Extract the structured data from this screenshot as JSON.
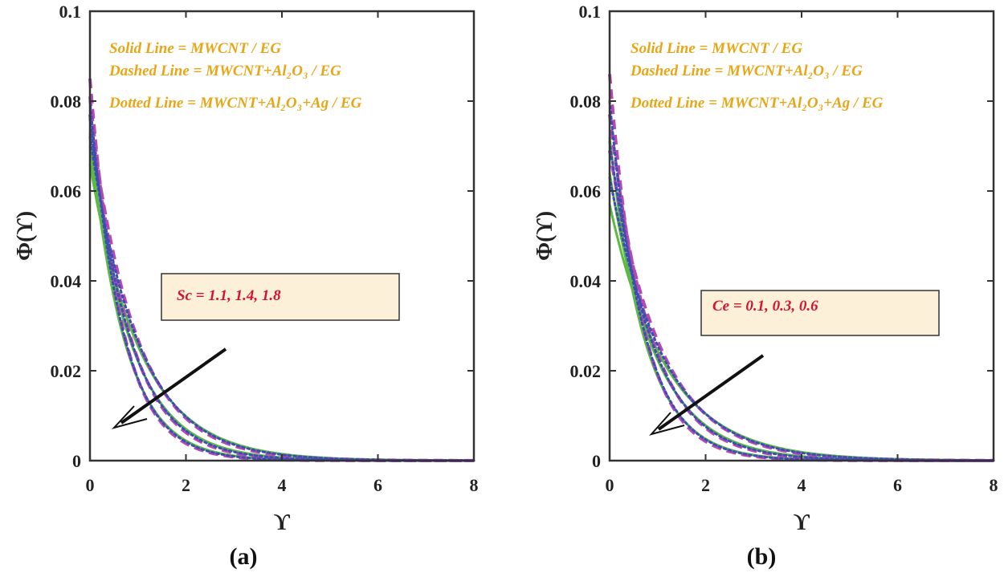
{
  "chart_data": [
    {
      "type": "line",
      "panel": "(a)",
      "xlabel": "ϒ",
      "ylabel": "Φ(ϒ)",
      "xlim": [
        0,
        8
      ],
      "ylim": [
        0,
        0.1
      ],
      "xticks": [
        "0",
        "2",
        "4",
        "6",
        "8"
      ],
      "yticks": [
        "0",
        "0.02",
        "0.04",
        "0.06",
        "0.08",
        "0.1"
      ],
      "legend": [
        {
          "text": "Solid Line = MWCNT / EG",
          "style": "solid"
        },
        {
          "text": "Dashed Line = MWCNT+Al₂O₃ / EG",
          "style": "dashed"
        },
        {
          "text": "Dotted Line = MWCNT+Al₂O₃+Ag / EG",
          "style": "dotted"
        }
      ],
      "annotation": "Sc = 1.1, 1.4, 1.8",
      "arrow_direction": "values decrease as Sc increases",
      "parameter_values": [
        "1.1",
        "1.4",
        "1.8"
      ],
      "series": [
        {
          "name": "MWCNT/EG, Sc=1.1",
          "style": "solid",
          "color": "#5cb944",
          "y0": 0.066,
          "decay": 0.95
        },
        {
          "name": "MWCNT/EG, Sc=1.4",
          "style": "solid",
          "color": "#5cb944",
          "y0": 0.07,
          "decay": 1.15
        },
        {
          "name": "MWCNT/EG, Sc=1.8",
          "style": "solid",
          "color": "#5cb944",
          "y0": 0.073,
          "decay": 1.4
        },
        {
          "name": "MWCNT+Al2O3/EG, Sc=1.1",
          "style": "dashed",
          "color": "#b548b4",
          "y0": 0.077,
          "decay": 1.05
        },
        {
          "name": "MWCNT+Al2O3/EG, Sc=1.4",
          "style": "dashed",
          "color": "#b548b4",
          "y0": 0.081,
          "decay": 1.28
        },
        {
          "name": "MWCNT+Al2O3/EG, Sc=1.8",
          "style": "dashed",
          "color": "#b548b4",
          "y0": 0.085,
          "decay": 1.55
        },
        {
          "name": "MWCNT+Al2O3+Ag/EG, Sc=1.1",
          "style": "dotted",
          "color": "#3b4fb0",
          "y0": 0.072,
          "decay": 1.0
        },
        {
          "name": "MWCNT+Al2O3+Ag/EG, Sc=1.4",
          "style": "dotted",
          "color": "#3b4fb0",
          "y0": 0.076,
          "decay": 1.22
        },
        {
          "name": "MWCNT+Al2O3+Ag/EG, Sc=1.8",
          "style": "dotted",
          "color": "#3b4fb0",
          "y0": 0.08,
          "decay": 1.48
        }
      ]
    },
    {
      "type": "line",
      "panel": "(b)",
      "xlabel": "ϒ",
      "ylabel": "Φ(ϒ)",
      "xlim": [
        0,
        8
      ],
      "ylim": [
        0,
        0.1
      ],
      "xticks": [
        "0",
        "2",
        "4",
        "6",
        "8"
      ],
      "yticks": [
        "0",
        "0.02",
        "0.04",
        "0.06",
        "0.08",
        "0.1"
      ],
      "legend": [
        {
          "text": "Solid Line = MWCNT / EG",
          "style": "solid"
        },
        {
          "text": "Dashed Line = MWCNT+Al₂O₃ / EG",
          "style": "dashed"
        },
        {
          "text": "Dotted Line = MWCNT+Al₂O₃+Ag / EG",
          "style": "dotted"
        }
      ],
      "annotation": "Ce = 0.1, 0.3, 0.6",
      "arrow_direction": "values decrease as Ce increases",
      "parameter_values": [
        "0.1",
        "0.3",
        "0.6"
      ],
      "series": [
        {
          "name": "MWCNT/EG, Ce=0.1",
          "style": "solid",
          "color": "#5cb944",
          "y0": 0.057,
          "decay": 0.85
        },
        {
          "name": "MWCNT/EG, Ce=0.3",
          "style": "solid",
          "color": "#5cb944",
          "y0": 0.064,
          "decay": 1.05
        },
        {
          "name": "MWCNT/EG, Ce=0.6",
          "style": "solid",
          "color": "#5cb944",
          "y0": 0.072,
          "decay": 1.35
        },
        {
          "name": "MWCNT+Al2O3/EG, Ce=0.1",
          "style": "dashed",
          "color": "#b548b4",
          "y0": 0.069,
          "decay": 0.95
        },
        {
          "name": "MWCNT+Al2O3/EG, Ce=0.3",
          "style": "dashed",
          "color": "#b548b4",
          "y0": 0.077,
          "decay": 1.18
        },
        {
          "name": "MWCNT+Al2O3/EG, Ce=0.6",
          "style": "dashed",
          "color": "#b548b4",
          "y0": 0.086,
          "decay": 1.5
        },
        {
          "name": "MWCNT+Al2O3+Ag/EG, Ce=0.1",
          "style": "dotted",
          "color": "#3b4fb0",
          "y0": 0.063,
          "decay": 0.9
        },
        {
          "name": "MWCNT+Al2O3+Ag/EG, Ce=0.3",
          "style": "dotted",
          "color": "#3b4fb0",
          "y0": 0.071,
          "decay": 1.12
        },
        {
          "name": "MWCNT+Al2O3+Ag/EG, Ce=0.6",
          "style": "dotted",
          "color": "#3b4fb0",
          "y0": 0.08,
          "decay": 1.42
        }
      ]
    }
  ],
  "colors": {
    "legend_text": "#e8a617",
    "annotation_text": "#d6132e",
    "annotation_box": "#fcf0d9",
    "axes": "#333333"
  }
}
